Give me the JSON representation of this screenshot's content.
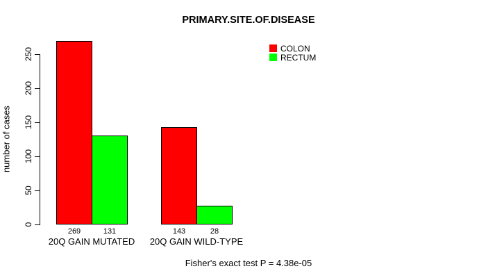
{
  "chart_data": {
    "type": "bar",
    "title": "PRIMARY.SITE.OF.DISEASE",
    "xlabel": "",
    "ylabel": "number of cases",
    "ylim": [
      0,
      250
    ],
    "yticks": [
      0,
      50,
      100,
      150,
      200,
      250
    ],
    "categories": [
      "20Q GAIN MUTATED",
      "20Q GAIN WILD-TYPE"
    ],
    "series": [
      {
        "name": "COLON",
        "color": "#ff0000",
        "values": [
          269,
          143
        ]
      },
      {
        "name": "RECTUM",
        "color": "#00ff00",
        "values": [
          131,
          28
        ]
      }
    ],
    "bar_value_labels": [
      [
        "269",
        "131"
      ],
      [
        "143",
        "28"
      ]
    ],
    "legend": {
      "position": "top-right",
      "entries": [
        "COLON",
        "RECTUM"
      ]
    },
    "annotation": "Fisher's exact test P = 4.38e-05",
    "grid": false,
    "background": "#ffffff"
  }
}
